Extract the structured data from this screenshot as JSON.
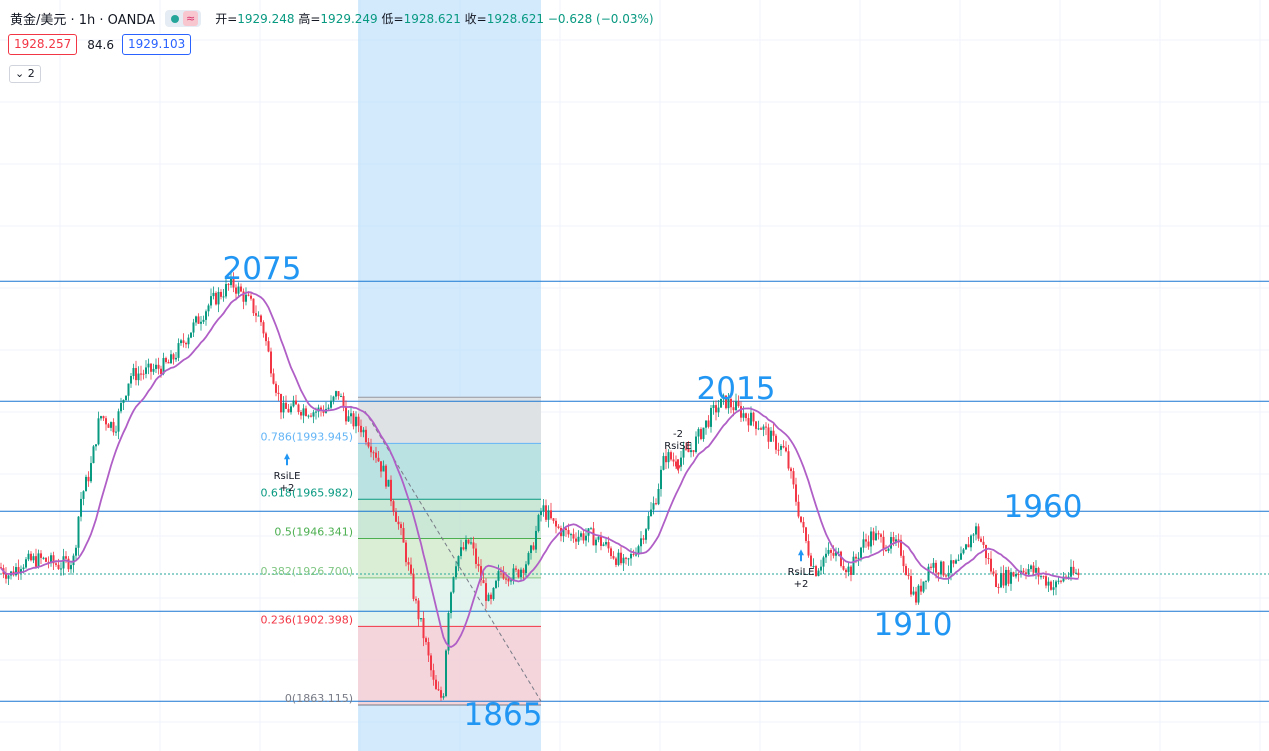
{
  "header": {
    "symbol": "黄金/美元 · 1h · OANDA",
    "open_label": "开=",
    "open_value": "1929.248",
    "high_label": "高=",
    "high_value": "1929.249",
    "low_label": "低=",
    "low_value": "1928.621",
    "close_label": "收=",
    "close_value": "1928.621",
    "change": "−0.628 (−0.03%)"
  },
  "trade": {
    "sell_price": "1928.257",
    "spread": "84.6",
    "buy_price": "1929.103"
  },
  "indicator_toggle": "2",
  "colors": {
    "up": "#089981",
    "down": "#f23645",
    "ma": "#b05fc6",
    "level": "#1976d2",
    "annotation": "#2196f3",
    "fib_zone": "#bbdefb"
  },
  "chart_data": {
    "type": "candlestick",
    "instrument": "XAU/USD",
    "timeframe": "1h",
    "y_range": [
      1855,
      2095
    ],
    "horizontal_levels": [
      2075,
      2015,
      1960,
      1910,
      1865
    ],
    "price_annotations": [
      "2075",
      "2015",
      "1960",
      "1910",
      "1865"
    ],
    "fibonacci": [
      {
        "ratio": "0.786",
        "label": "0.786(1993.945)",
        "price": 1993.945,
        "color": "#64b5f6"
      },
      {
        "ratio": "0.618",
        "label": "0.618(1965.982)",
        "price": 1965.982,
        "color": "#089981"
      },
      {
        "ratio": "0.5",
        "label": "0.5(1946.341)",
        "price": 1946.341,
        "color": "#4caf50"
      },
      {
        "ratio": "0.382",
        "label": "0.382(1926.700)",
        "price": 1926.7,
        "color": "#81c784"
      },
      {
        "ratio": "0.236",
        "label": "0.236(1902.398)",
        "price": 1902.398,
        "color": "#f23645"
      },
      {
        "ratio": "0",
        "label": "0(1863.115)",
        "price": 1863.115,
        "color": "#787b86"
      }
    ],
    "signals": [
      {
        "name": "RsiLE",
        "qty": "+2",
        "side": "long",
        "price": 1990
      },
      {
        "name": "RsiSE",
        "qty": "-2",
        "side": "short",
        "price": 1985
      },
      {
        "name": "RsiLE",
        "qty": "+2",
        "side": "long",
        "price": 1942
      }
    ],
    "current_price": 1928.621,
    "waypoints": [
      [
        0,
        1932
      ],
      [
        10,
        1928
      ],
      [
        20,
        1934
      ],
      [
        40,
        1936
      ],
      [
        60,
        1933
      ],
      [
        74,
        1936
      ],
      [
        80,
        1965
      ],
      [
        90,
        1980
      ],
      [
        100,
        2008
      ],
      [
        115,
        2002
      ],
      [
        130,
        2028
      ],
      [
        150,
        2030
      ],
      [
        170,
        2034
      ],
      [
        190,
        2050
      ],
      [
        210,
        2064
      ],
      [
        232,
        2074
      ],
      [
        250,
        2064
      ],
      [
        262,
        2054
      ],
      [
        270,
        2035
      ],
      [
        282,
        2010
      ],
      [
        295,
        2012
      ],
      [
        315,
        2010
      ],
      [
        330,
        2012
      ],
      [
        338,
        2020
      ],
      [
        348,
        2006
      ],
      [
        360,
        2003
      ],
      [
        375,
        1990
      ],
      [
        385,
        1978
      ],
      [
        395,
        1960
      ],
      [
        405,
        1940
      ],
      [
        415,
        1915
      ],
      [
        425,
        1895
      ],
      [
        435,
        1870
      ],
      [
        443,
        1866
      ],
      [
        448,
        1910
      ],
      [
        455,
        1935
      ],
      [
        462,
        1940
      ],
      [
        470,
        1945
      ],
      [
        480,
        1928
      ],
      [
        490,
        1912
      ],
      [
        500,
        1930
      ],
      [
        515,
        1928
      ],
      [
        530,
        1937
      ],
      [
        542,
        1962
      ],
      [
        555,
        1952
      ],
      [
        570,
        1948
      ],
      [
        590,
        1948
      ],
      [
        605,
        1943
      ],
      [
        625,
        1932
      ],
      [
        640,
        1945
      ],
      [
        655,
        1965
      ],
      [
        665,
        1988
      ],
      [
        675,
        1985
      ],
      [
        690,
        1990
      ],
      [
        705,
        2003
      ],
      [
        715,
        2011
      ],
      [
        725,
        2015
      ],
      [
        735,
        2012
      ],
      [
        745,
        2008
      ],
      [
        760,
        2003
      ],
      [
        775,
        1994
      ],
      [
        785,
        1990
      ],
      [
        795,
        1968
      ],
      [
        805,
        1946
      ],
      [
        815,
        1930
      ],
      [
        825,
        1938
      ],
      [
        838,
        1938
      ],
      [
        850,
        1930
      ],
      [
        862,
        1943
      ],
      [
        872,
        1948
      ],
      [
        885,
        1944
      ],
      [
        900,
        1942
      ],
      [
        915,
        1915
      ],
      [
        930,
        1934
      ],
      [
        945,
        1930
      ],
      [
        960,
        1934
      ],
      [
        975,
        1952
      ],
      [
        985,
        1940
      ],
      [
        995,
        1925
      ],
      [
        1010,
        1928
      ],
      [
        1025,
        1932
      ],
      [
        1040,
        1928
      ],
      [
        1055,
        1922
      ],
      [
        1065,
        1928
      ],
      [
        1080,
        1928.6
      ]
    ]
  }
}
